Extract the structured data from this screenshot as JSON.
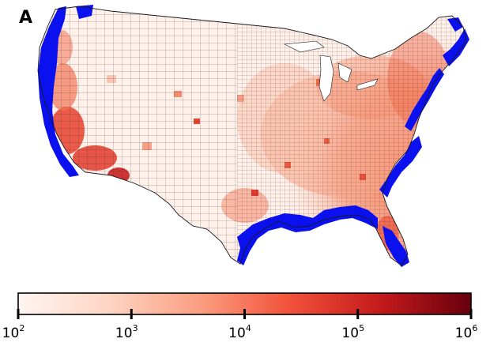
{
  "panel_label": "A",
  "colors": {
    "coast": "#0a10ee",
    "border": "#1a1a1a",
    "scale": [
      "#fff5f0",
      "#fdd5c3",
      "#fb9e81",
      "#f2513a",
      "#c41a1c",
      "#67000d"
    ]
  },
  "colorbar": {
    "scale": "log",
    "min": 100,
    "max": 1000000,
    "ticks": [
      {
        "base": "10",
        "exp": "2"
      },
      {
        "base": "10",
        "exp": "3"
      },
      {
        "base": "10",
        "exp": "4"
      },
      {
        "base": "10",
        "exp": "5"
      },
      {
        "base": "10",
        "exp": "6"
      }
    ]
  }
}
